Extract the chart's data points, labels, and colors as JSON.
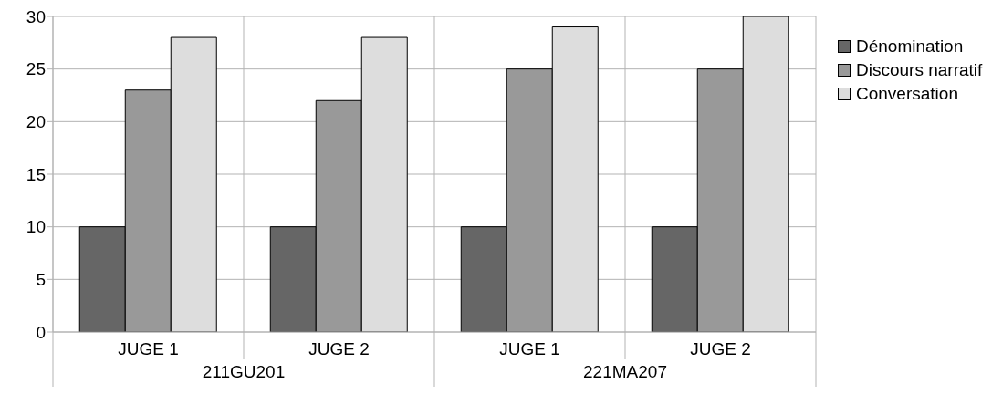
{
  "chart_data": {
    "type": "bar",
    "categories": [
      "JUGE 1",
      "JUGE 2",
      "JUGE 1",
      "JUGE 2"
    ],
    "annotations": [
      "211GU201",
      "221MA207"
    ],
    "series": [
      {
        "name": "Dénomination",
        "color": "#666666",
        "values": [
          10,
          10,
          10,
          10
        ]
      },
      {
        "name": "Discours narratif",
        "color": "#999999",
        "values": [
          23,
          22,
          25,
          25
        ]
      },
      {
        "name": "Conversation",
        "color": "#dddddd",
        "values": [
          28,
          28,
          29,
          30
        ]
      }
    ],
    "ylim": [
      0,
      30
    ],
    "yticks": [
      0,
      5,
      10,
      15,
      20,
      25,
      30
    ],
    "grid": true,
    "legend": "top right"
  }
}
